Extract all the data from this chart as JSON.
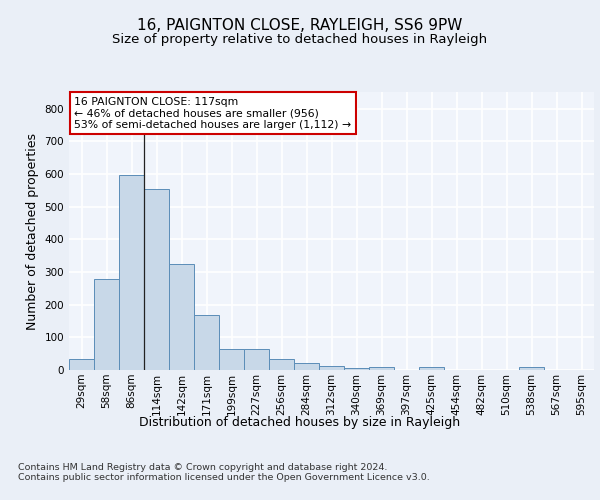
{
  "title1": "16, PAIGNTON CLOSE, RAYLEIGH, SS6 9PW",
  "title2": "Size of property relative to detached houses in Rayleigh",
  "xlabel": "Distribution of detached houses by size in Rayleigh",
  "ylabel": "Number of detached properties",
  "footer": "Contains HM Land Registry data © Crown copyright and database right 2024.\nContains public sector information licensed under the Open Government Licence v3.0.",
  "categories": [
    "29sqm",
    "58sqm",
    "86sqm",
    "114sqm",
    "142sqm",
    "171sqm",
    "199sqm",
    "227sqm",
    "256sqm",
    "284sqm",
    "312sqm",
    "340sqm",
    "369sqm",
    "397sqm",
    "425sqm",
    "454sqm",
    "482sqm",
    "510sqm",
    "538sqm",
    "567sqm",
    "595sqm"
  ],
  "values": [
    35,
    280,
    598,
    553,
    325,
    170,
    65,
    65,
    35,
    20,
    12,
    7,
    10,
    0,
    8,
    0,
    0,
    0,
    8,
    0,
    0
  ],
  "bar_color": "#c8d8e8",
  "bar_edge_color": "#5b8db8",
  "annotation_text": "16 PAIGNTON CLOSE: 117sqm\n← 46% of detached houses are smaller (956)\n53% of semi-detached houses are larger (1,112) →",
  "annotation_box_color": "#ffffff",
  "annotation_box_edge_color": "#cc0000",
  "vline_x_index": 3,
  "ylim": [
    0,
    850
  ],
  "yticks": [
    0,
    100,
    200,
    300,
    400,
    500,
    600,
    700,
    800
  ],
  "bg_color": "#eaeff7",
  "plot_bg_color": "#f0f4fb",
  "grid_color": "#ffffff",
  "title1_fontsize": 11,
  "title2_fontsize": 9.5,
  "axis_label_fontsize": 9,
  "tick_fontsize": 7.5,
  "footer_fontsize": 6.8
}
